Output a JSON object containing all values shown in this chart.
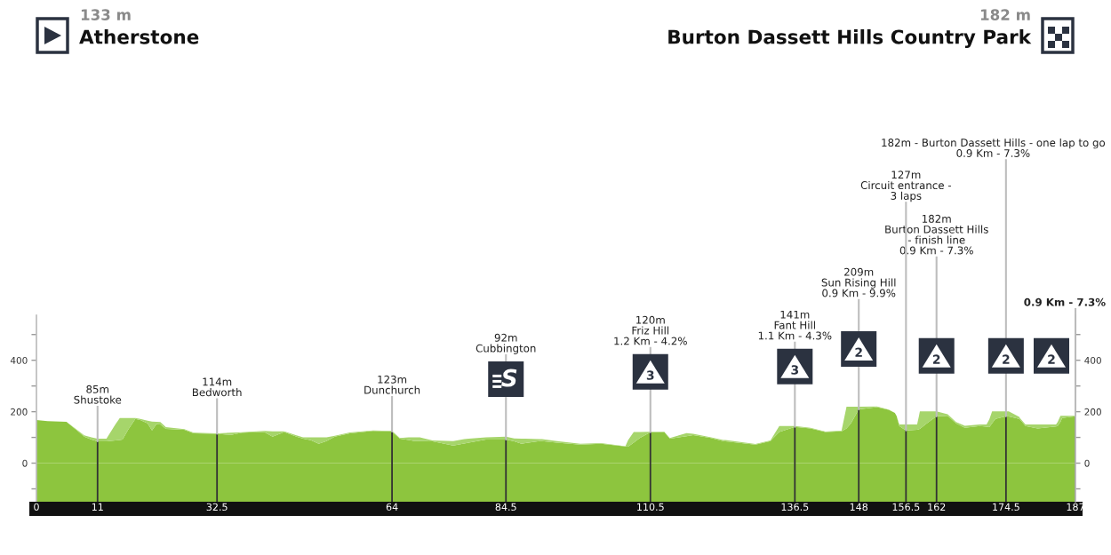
{
  "chart_data": {
    "type": "area",
    "stacked": true,
    "xlim": [
      0,
      187
    ],
    "xticks": [
      0,
      11,
      32.5,
      64,
      84.5,
      110.5,
      136.5,
      148,
      156.5,
      162,
      174.5,
      187
    ],
    "ylim": [
      -150,
      575
    ],
    "yticks": [
      {
        "value": -100,
        "label": null
      },
      0,
      {
        "value": 100,
        "label": null
      },
      200,
      {
        "value": 300,
        "label": null
      },
      400,
      {
        "value": 500,
        "label": null
      }
    ],
    "y2lim": [
      -150,
      575
    ],
    "y2ticks": [
      {
        "value": -100,
        "label": null
      },
      0,
      {
        "value": 100,
        "label": null
      },
      200,
      {
        "value": 300,
        "label": null
      },
      400,
      {
        "value": 500,
        "label": null
      }
    ],
    "bands": [
      {
        "axis": "y",
        "from": -150,
        "to": 0,
        "color": "#8dc53e"
      }
    ],
    "x": [
      0,
      2,
      5.4,
      7.3,
      8.6,
      9.9,
      11,
      12.6,
      14.2,
      15,
      15.5,
      16.5,
      17.8,
      18.7,
      20,
      20.8,
      21.6,
      22.3,
      23.3,
      26.6,
      28.3,
      32.5,
      35,
      37,
      41,
      42.5,
      44.6,
      46.8,
      48,
      49.4,
      50.8,
      52.2,
      53.7,
      56.4,
      60.6,
      64,
      65.4,
      67,
      68.1,
      69,
      71.3,
      75,
      77,
      77.8,
      80.9,
      84.5,
      86,
      87.3,
      88,
      90.5,
      91,
      93.7,
      97.9,
      101.6,
      106,
      106.5,
      107.5,
      108.6,
      110.5,
      113,
      114,
      117,
      118.2,
      121.4,
      123.6,
      124,
      129.4,
      132.1,
      133.7,
      136.5,
      139.3,
      142,
      144.9,
      145.8,
      146.6,
      148,
      151.3,
      153.4,
      154.5,
      154.8,
      155.3,
      156.5,
      158.5,
      158.8,
      159,
      160,
      162,
      164,
      165.5,
      167.1,
      169.8,
      171,
      171.5,
      172,
      172.6,
      174.5,
      175,
      176.9,
      177,
      178,
      180.2,
      183.5,
      183.8,
      184.3,
      184.6,
      187
    ],
    "series": [
      {
        "color": "#8dc53e",
        "values": [
          168,
          163,
          161,
          127,
          103,
          92,
          85,
          85,
          88,
          90,
          92,
          130,
          172,
          168,
          155,
          127,
          151,
          150,
          133,
          130,
          116,
          114,
          110,
          118,
          121,
          103,
          121,
          103,
          95,
          89,
          75,
          86,
          103,
          116,
          125,
          123,
          95,
          90,
          86,
          86,
          85,
          68,
          76,
          80,
          92,
          92,
          85,
          75,
          78,
          86,
          86,
          80,
          72,
          75,
          65,
          64,
          80,
          98,
          120,
          121,
          95,
          105,
          109,
          98,
          86,
          85,
          72,
          86,
          121,
          141,
          135,
          121,
          124,
          135,
          155,
          209,
          218,
          207,
          195,
          184,
          144,
          127,
          130,
          131,
          133,
          150,
          182,
          184,
          155,
          137,
          144,
          142,
          140,
          155,
          172,
          182,
          181,
          172,
          170,
          144,
          135,
          143,
          144,
          160,
          175,
          182
        ]
      },
      {
        "color": "#a6d56b",
        "values": [
          0,
          0,
          0,
          3,
          5,
          8,
          10,
          10,
          62,
          85,
          83,
          45,
          3,
          4,
          10,
          35,
          10,
          10,
          7,
          2,
          2,
          2,
          8,
          2,
          4,
          21,
          3,
          5,
          5,
          11,
          25,
          14,
          3,
          3,
          2,
          2,
          3,
          10,
          14,
          14,
          3,
          18,
          17,
          15,
          8,
          11,
          11,
          20,
          17,
          7,
          7,
          6,
          3,
          3,
          1,
          26,
          41,
          23,
          2,
          1,
          3,
          12,
          5,
          2,
          4,
          5,
          2,
          2,
          23,
          3,
          2,
          2,
          2,
          84,
          64,
          10,
          2,
          1,
          0,
          0,
          6,
          23,
          20,
          49,
          68,
          51,
          19,
          6,
          5,
          8,
          6,
          8,
          30,
          46,
          29,
          19,
          20,
          8,
          5,
          6,
          15,
          7,
          16,
          24,
          9,
          2
        ]
      }
    ],
    "annotations": [
      "133 m",
      "Atherstone",
      "182 m",
      "Burton Dassett Hills Country Park",
      {
        "text": "85m\nShustoke",
        "x": 11,
        "y": 85
      },
      {
        "text": "114m\nBedworth",
        "x": 32.5,
        "y": 114
      },
      {
        "text": "123m\nDunchurch",
        "x": 64,
        "y": 123
      },
      {
        "text": "92m\nCubbington",
        "x": 84.5,
        "y": 92
      },
      "S",
      {
        "text": "120m\nFriz Hill\n1.2 Km - 4.2%",
        "x": 110.5,
        "y": 120
      },
      "3",
      {
        "text": "141m\nFant Hill\n1.1 Km - 4.3%",
        "x": 136.5,
        "y": 141
      },
      "3",
      {
        "text": "209m\nSun Rising Hill\n0.9 Km - 9.9%",
        "x": 148,
        "y": 209
      },
      "2",
      {
        "text": "182m\nBurton Dassett Hills\n- finish line\n0.9 Km - 7.3%",
        "x": 162,
        "y": 182
      },
      "2",
      {
        "text": "127m\nCircuit entrance -\n3 laps",
        "x": 156.5,
        "y": 127
      },
      {
        "text": "182m - Burton Dassett Hills - one lap to go\n0.9 Km - 7.3%",
        "x": 174.5,
        "y": 182
      },
      "2",
      {
        "text": "0.9 Km - 7.3%",
        "x": 187,
        "y": 182
      },
      "2"
    ]
  }
}
